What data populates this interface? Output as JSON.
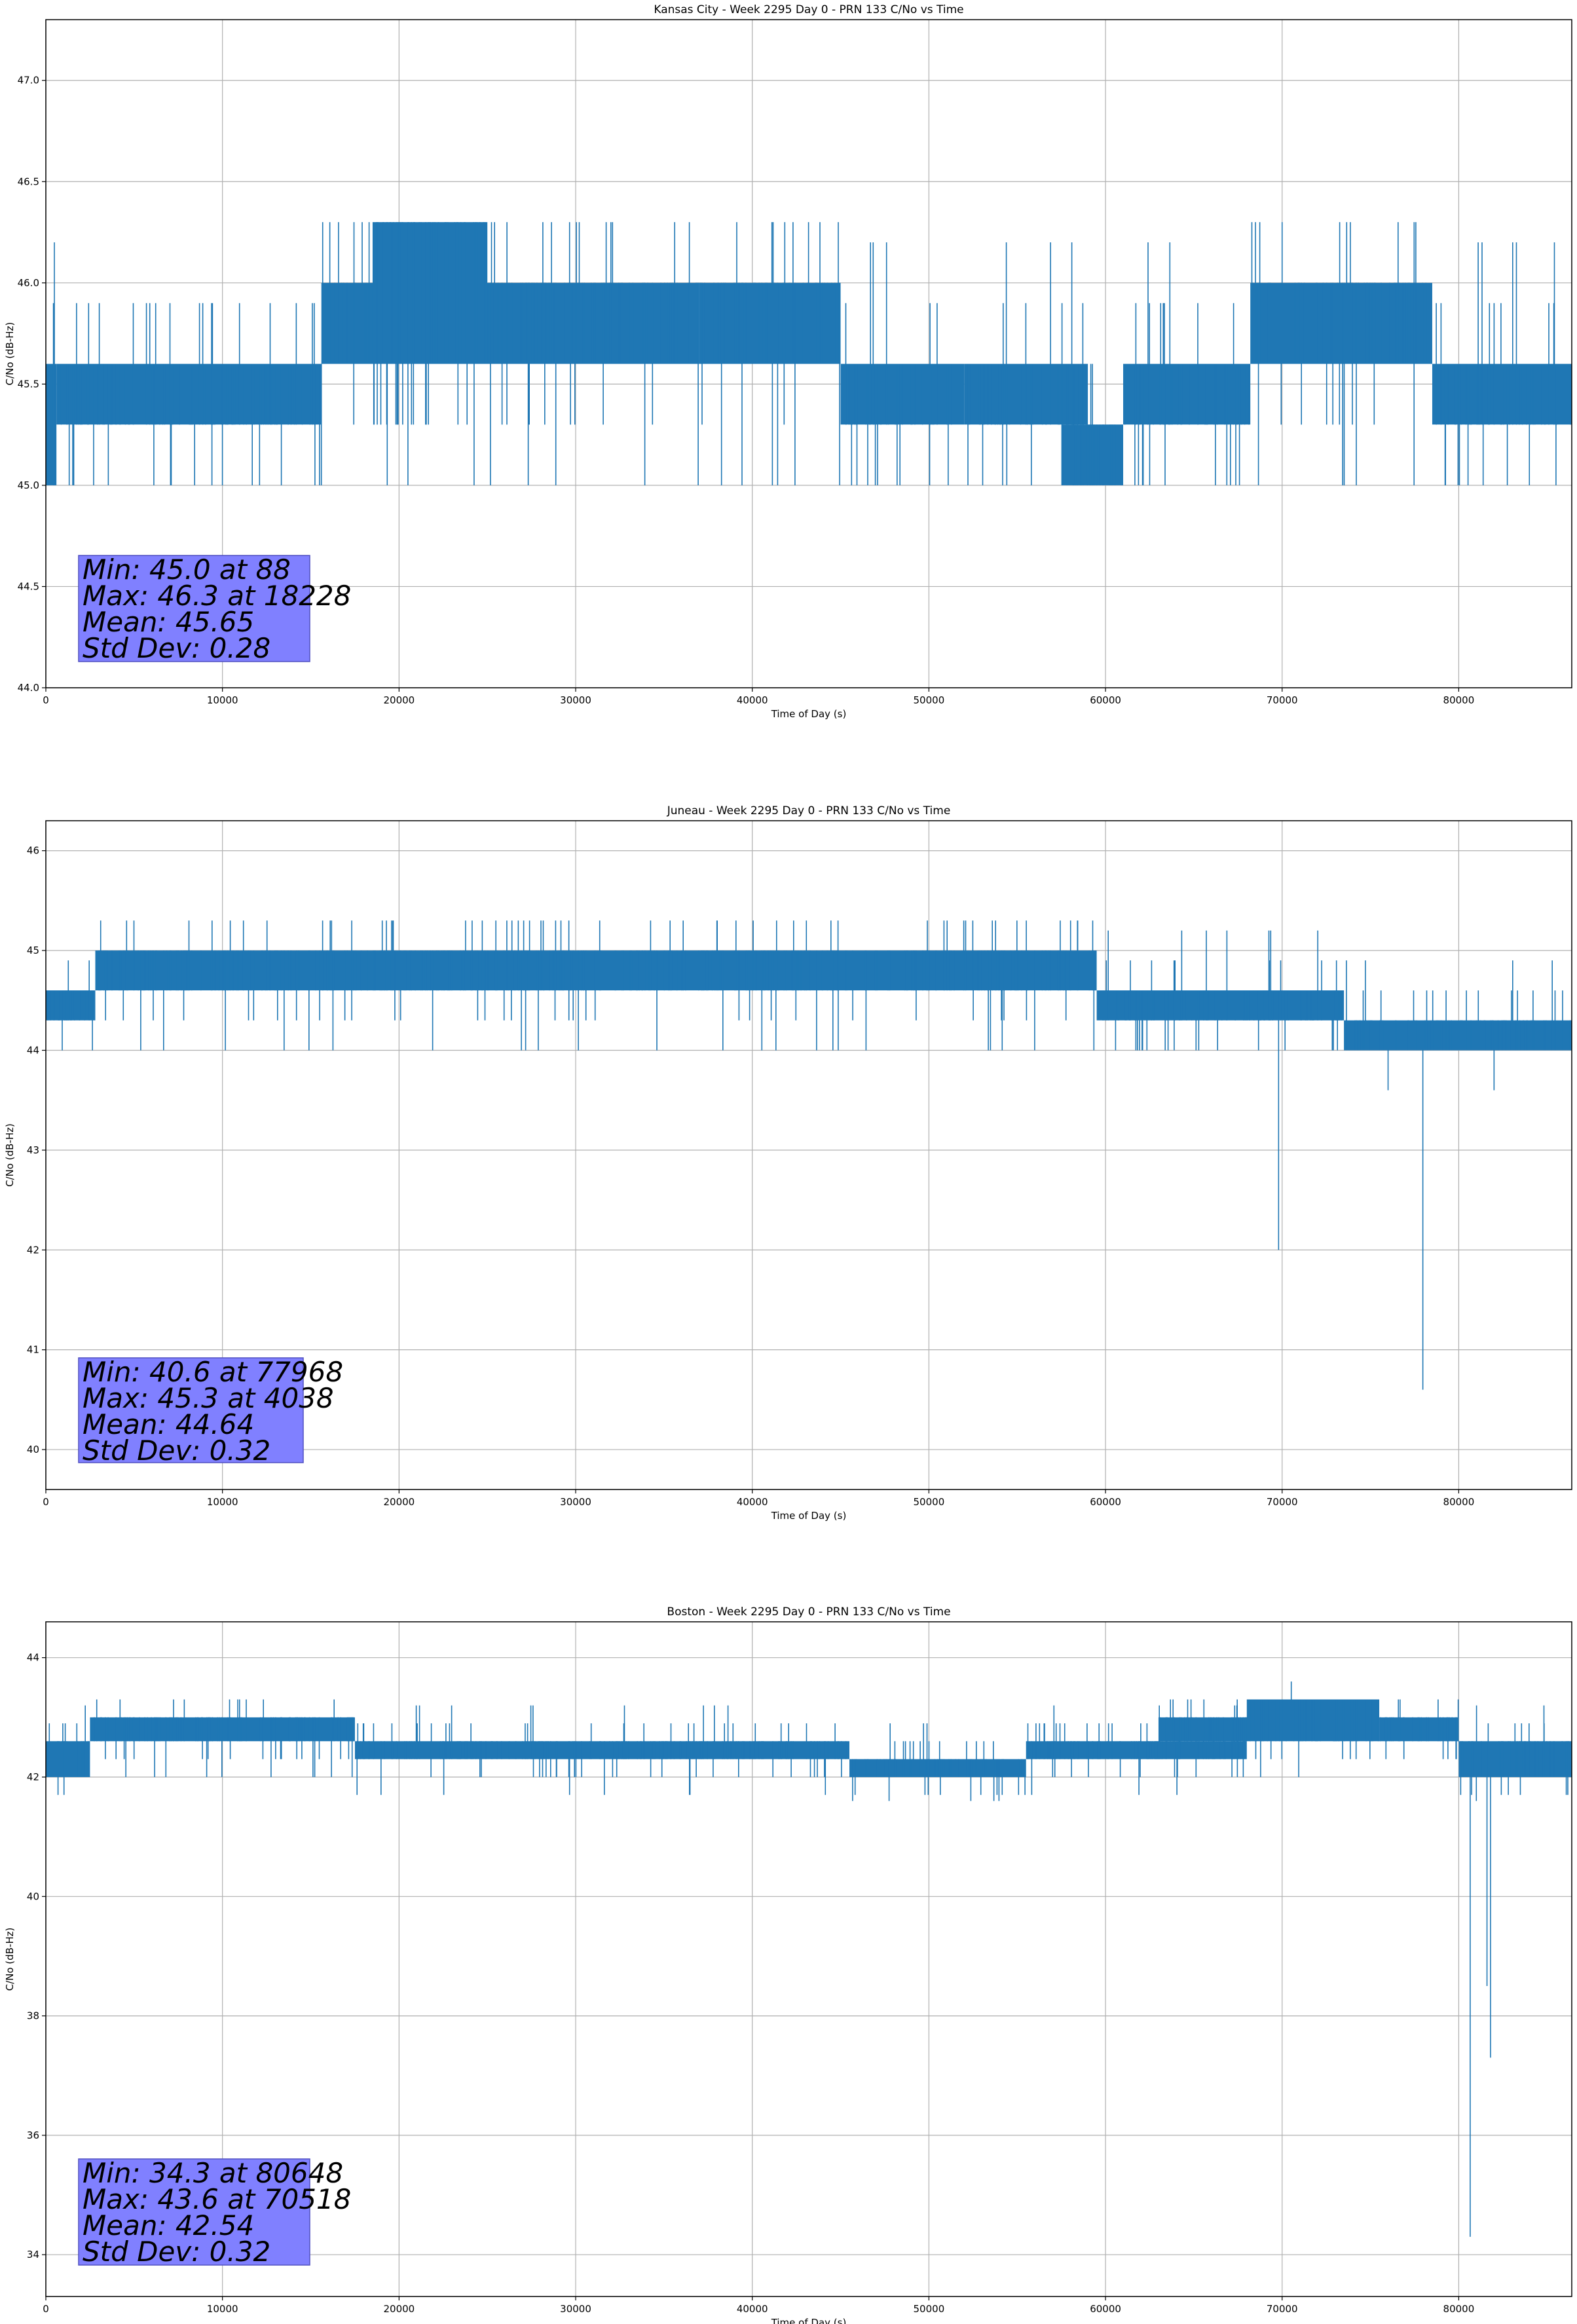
{
  "chart_data": [
    {
      "type": "line",
      "title": "Kansas City - Week 2295 Day 0 - PRN 133 C/No vs Time",
      "xlabel": "Time of Day (s)",
      "ylabel": "C/No (dB-Hz)",
      "xlim": [
        0,
        86400
      ],
      "ylim": [
        44.0,
        47.3
      ],
      "xticks": [
        0,
        10000,
        20000,
        30000,
        40000,
        50000,
        60000,
        70000,
        80000
      ],
      "yticks": [
        "44.0",
        "44.5",
        "45.0",
        "45.5",
        "46.0",
        "46.5",
        "47.0"
      ],
      "grid": true,
      "color": "#1f77b4",
      "bands": [
        {
          "x": [
            0,
            600
          ],
          "lo": 45.0,
          "hi": 45.6
        },
        {
          "x": [
            600,
            10000
          ],
          "lo": 45.3,
          "hi": 45.6
        },
        {
          "x": [
            10000,
            15600
          ],
          "lo": 45.3,
          "hi": 45.6
        },
        {
          "x": [
            15600,
            37000
          ],
          "lo": 45.6,
          "hi": 46.0
        },
        {
          "x": [
            18500,
            25000
          ],
          "lo": 45.6,
          "hi": 46.3
        },
        {
          "x": [
            37000,
            45000
          ],
          "lo": 45.6,
          "hi": 46.0
        },
        {
          "x": [
            45000,
            52000
          ],
          "lo": 45.3,
          "hi": 45.6
        },
        {
          "x": [
            52000,
            59000
          ],
          "lo": 45.3,
          "hi": 45.6
        },
        {
          "x": [
            57500,
            61000
          ],
          "lo": 45.0,
          "hi": 45.3
        },
        {
          "x": [
            61000,
            68200
          ],
          "lo": 45.3,
          "hi": 45.6
        },
        {
          "x": [
            68200,
            78500
          ],
          "lo": 45.6,
          "hi": 46.0
        },
        {
          "x": [
            78500,
            86400
          ],
          "lo": 45.3,
          "hi": 45.6
        }
      ],
      "noise_range": [
        45.0,
        46.3
      ],
      "spikes": [
        {
          "x": 12100,
          "y": 45.0
        },
        {
          "x": 62500,
          "y": 45.0
        },
        {
          "x": 70000,
          "y": 46.3
        },
        {
          "x": 84000,
          "y": 45.0
        }
      ],
      "stats": [
        "Min: 45.0 at 88",
        "Max: 46.3 at 18228",
        "Mean: 45.65",
        "Std Dev: 0.28"
      ]
    },
    {
      "type": "line",
      "title": "Juneau - Week 2295 Day 0 - PRN 133 C/No vs Time",
      "xlabel": "Time of Day (s)",
      "ylabel": "C/No (dB-Hz)",
      "xlim": [
        0,
        86400
      ],
      "ylim": [
        39.6,
        46.3
      ],
      "xticks": [
        0,
        10000,
        20000,
        30000,
        40000,
        50000,
        60000,
        70000,
        80000
      ],
      "yticks": [
        "40",
        "41",
        "42",
        "43",
        "44",
        "45",
        "46"
      ],
      "grid": true,
      "color": "#1f77b4",
      "bands": [
        {
          "x": [
            0,
            2800
          ],
          "lo": 44.3,
          "hi": 44.6
        },
        {
          "x": [
            2800,
            59500
          ],
          "lo": 44.6,
          "hi": 45.0
        },
        {
          "x": [
            59500,
            73500
          ],
          "lo": 44.3,
          "hi": 44.6
        },
        {
          "x": [
            73500,
            86400
          ],
          "lo": 44.0,
          "hi": 44.3
        }
      ],
      "noise_range": [
        44.0,
        45.3
      ],
      "spikes": [
        {
          "x": 69800,
          "y": 42.0
        },
        {
          "x": 77968,
          "y": 40.6
        },
        {
          "x": 76000,
          "y": 43.6
        },
        {
          "x": 82000,
          "y": 43.6
        },
        {
          "x": 62100,
          "y": 44.0
        }
      ],
      "stats": [
        "Min: 40.6 at 77968",
        "Max: 45.3 at 4038",
        "Mean: 44.64",
        "Std Dev: 0.32"
      ]
    },
    {
      "type": "line",
      "title": "Boston - Week 2295 Day 0 - PRN 133 C/No vs Time",
      "xlabel": "Time of Day (s)",
      "ylabel": "C/No (dB-Hz)",
      "xlim": [
        0,
        86400
      ],
      "ylim": [
        33.3,
        44.6
      ],
      "xticks": [
        0,
        10000,
        20000,
        30000,
        40000,
        50000,
        60000,
        70000,
        80000
      ],
      "yticks": [
        "34",
        "36",
        "38",
        "40",
        "42",
        "44"
      ],
      "grid": true,
      "color": "#1f77b4",
      "bands": [
        {
          "x": [
            0,
            2500
          ],
          "lo": 42.0,
          "hi": 42.6
        },
        {
          "x": [
            2500,
            17500
          ],
          "lo": 42.6,
          "hi": 43.0
        },
        {
          "x": [
            17500,
            45500
          ],
          "lo": 42.3,
          "hi": 42.6
        },
        {
          "x": [
            45500,
            55500
          ],
          "lo": 42.0,
          "hi": 42.3
        },
        {
          "x": [
            55500,
            68000
          ],
          "lo": 42.3,
          "hi": 42.6
        },
        {
          "x": [
            63000,
            68000
          ],
          "lo": 42.6,
          "hi": 43.0
        },
        {
          "x": [
            68000,
            75500
          ],
          "lo": 42.6,
          "hi": 43.3
        },
        {
          "x": [
            75500,
            80000
          ],
          "lo": 42.6,
          "hi": 43.0
        },
        {
          "x": [
            80000,
            86400
          ],
          "lo": 42.0,
          "hi": 42.6
        }
      ],
      "noise_range": [
        41.6,
        43.3
      ],
      "spikes": [
        {
          "x": 80648,
          "y": 34.3
        },
        {
          "x": 81800,
          "y": 37.3
        },
        {
          "x": 81600,
          "y": 38.5
        },
        {
          "x": 70518,
          "y": 43.6
        }
      ],
      "stats": [
        "Min: 34.3 at 80648",
        "Max: 43.6 at 70518",
        "Mean: 42.54",
        "Std Dev: 0.32"
      ]
    }
  ]
}
